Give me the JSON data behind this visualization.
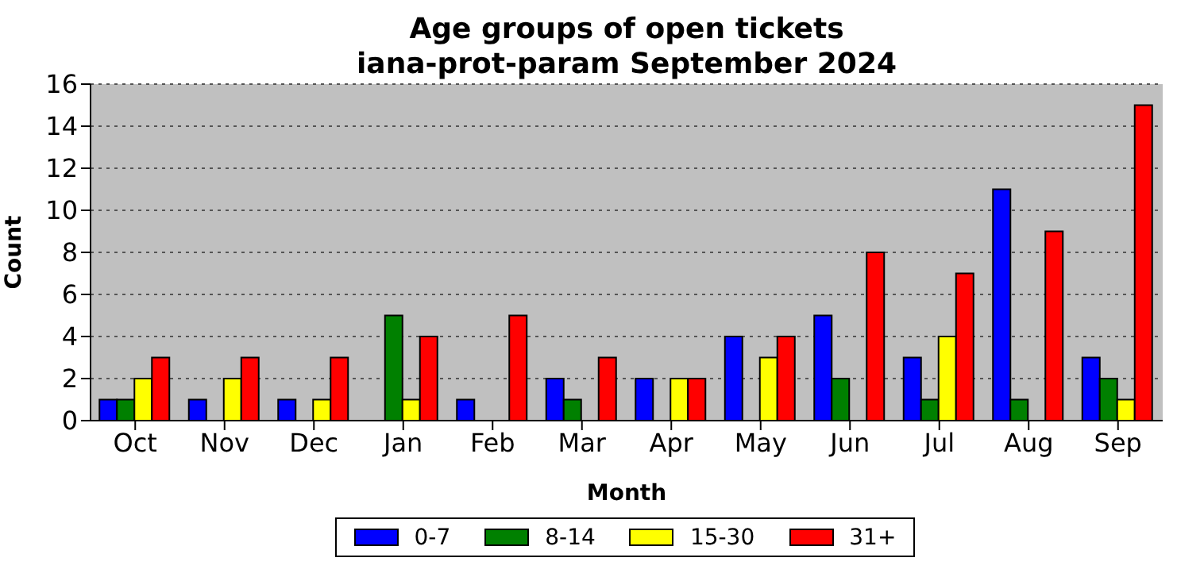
{
  "chart_data": {
    "type": "bar",
    "title": "Age groups of open tickets\niana-prot-param September 2024",
    "xlabel": "Month",
    "ylabel": "Count",
    "categories": [
      "Oct",
      "Nov",
      "Dec",
      "Jan",
      "Feb",
      "Mar",
      "Apr",
      "May",
      "Jun",
      "Jul",
      "Aug",
      "Sep"
    ],
    "series": [
      {
        "name": "0-7",
        "color": "#0000ff",
        "values": [
          1,
          1,
          1,
          0,
          1,
          2,
          2,
          4,
          5,
          3,
          11,
          3
        ]
      },
      {
        "name": "8-14",
        "color": "#008000",
        "values": [
          1,
          0,
          0,
          5,
          0,
          1,
          0,
          0,
          2,
          1,
          1,
          2
        ]
      },
      {
        "name": "15-30",
        "color": "#ffff00",
        "values": [
          2,
          2,
          1,
          1,
          0,
          0,
          2,
          3,
          0,
          4,
          0,
          1
        ]
      },
      {
        "name": "31+",
        "color": "#ff0000",
        "values": [
          3,
          3,
          3,
          4,
          5,
          3,
          2,
          4,
          8,
          7,
          9,
          15
        ]
      }
    ],
    "ylim": [
      0,
      16
    ],
    "yticks": [
      0,
      2,
      4,
      6,
      8,
      10,
      12,
      14,
      16
    ],
    "grid": "y",
    "legend": "bottom"
  }
}
